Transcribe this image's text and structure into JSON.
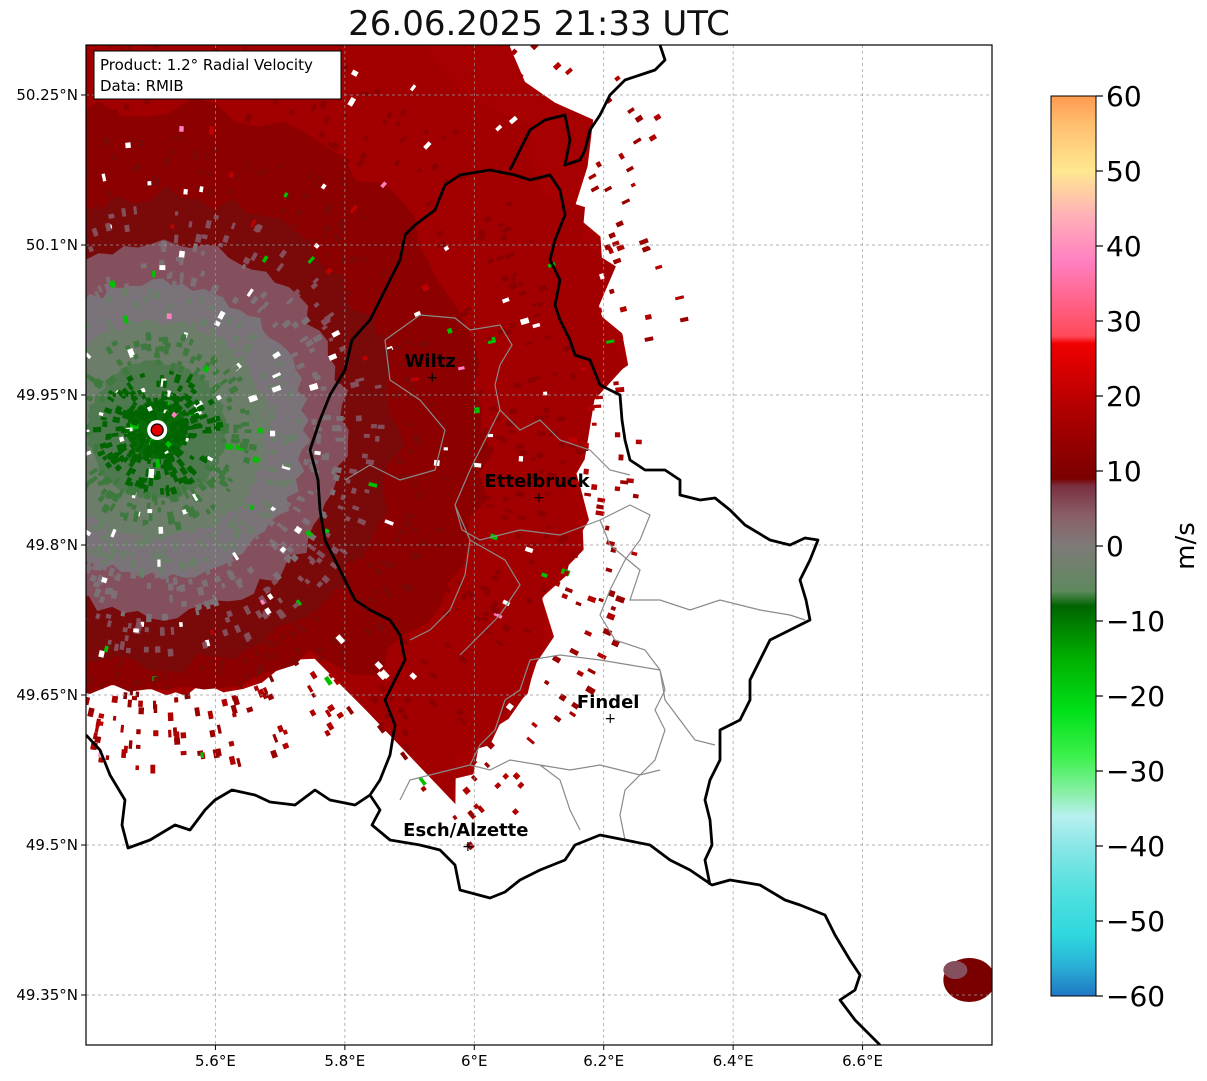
{
  "title": "26.06.2025 21:33 UTC",
  "info_box": {
    "product": "Product: 1.2° Radial Velocity",
    "data": "Data: RMIB"
  },
  "map": {
    "lon_range": [
      5.4,
      6.8
    ],
    "lat_range": [
      49.3,
      50.3
    ],
    "radar_site": {
      "lon": 5.51,
      "lat": 49.915
    },
    "lon_ticks": [
      {
        "value": 5.6,
        "label": "5.6°E"
      },
      {
        "value": 5.8,
        "label": "5.8°E"
      },
      {
        "value": 6.0,
        "label": "6°E"
      },
      {
        "value": 6.2,
        "label": "6.2°E"
      },
      {
        "value": 6.4,
        "label": "6.4°E"
      },
      {
        "value": 6.6,
        "label": "6.6°E"
      }
    ],
    "lat_ticks": [
      {
        "value": 50.25,
        "label": "50.25°N"
      },
      {
        "value": 50.1,
        "label": "50.1°N"
      },
      {
        "value": 49.95,
        "label": "49.95°N"
      },
      {
        "value": 49.8,
        "label": "49.8°N"
      },
      {
        "value": 49.65,
        "label": "49.65°N"
      },
      {
        "value": 49.5,
        "label": "49.5°N"
      },
      {
        "value": 49.35,
        "label": "49.35°N"
      }
    ],
    "grid": true,
    "cities": [
      {
        "name": "Wiltz",
        "lon": 5.935,
        "lat": 49.968
      },
      {
        "name": "Ettelbruck",
        "lon": 6.1,
        "lat": 49.848
      },
      {
        "name": "Findel",
        "lon": 6.21,
        "lat": 49.627
      },
      {
        "name": "Esch/Alzette",
        "lon": 5.99,
        "lat": 49.499
      }
    ]
  },
  "colorbar": {
    "label": "m/s",
    "min": -60,
    "max": 60,
    "ticks": [
      {
        "value": 60,
        "label": "60"
      },
      {
        "value": 50,
        "label": "50"
      },
      {
        "value": 40,
        "label": "40"
      },
      {
        "value": 30,
        "label": "30"
      },
      {
        "value": 20,
        "label": "20"
      },
      {
        "value": 10,
        "label": "10"
      },
      {
        "value": 0,
        "label": "0"
      },
      {
        "value": -10,
        "label": "−10"
      },
      {
        "value": -20,
        "label": "−20"
      },
      {
        "value": -30,
        "label": "−30"
      },
      {
        "value": -40,
        "label": "−40"
      },
      {
        "value": -50,
        "label": "−50"
      },
      {
        "value": -60,
        "label": "−60"
      }
    ],
    "stops": [
      {
        "v": -60,
        "c": "#1f77c4"
      },
      {
        "v": -56,
        "c": "#2ab0d6"
      },
      {
        "v": -52,
        "c": "#2ed8de"
      },
      {
        "v": -46,
        "c": "#52e0e0"
      },
      {
        "v": -40,
        "c": "#8ae6e6"
      },
      {
        "v": -36,
        "c": "#b8f0f0"
      },
      {
        "v": -33,
        "c": "#8af0a8"
      },
      {
        "v": -28,
        "c": "#3cf04c"
      },
      {
        "v": -22,
        "c": "#00e018"
      },
      {
        "v": -15,
        "c": "#00b000"
      },
      {
        "v": -8,
        "c": "#006400"
      },
      {
        "v": -6,
        "c": "#5e8a5e"
      },
      {
        "v": 0,
        "c": "#7e7a78"
      },
      {
        "v": 4,
        "c": "#8a6068"
      },
      {
        "v": 8,
        "c": "#7a3040"
      },
      {
        "v": 9,
        "c": "#7a0000"
      },
      {
        "v": 18,
        "c": "#b00000"
      },
      {
        "v": 27,
        "c": "#f00000"
      },
      {
        "v": 28,
        "c": "#ff4a5a"
      },
      {
        "v": 38,
        "c": "#ff80c0"
      },
      {
        "v": 44,
        "c": "#ffb0b8"
      },
      {
        "v": 50,
        "c": "#ffe890"
      },
      {
        "v": 56,
        "c": "#ffc070"
      },
      {
        "v": 60,
        "c": "#ff9a50"
      }
    ]
  }
}
